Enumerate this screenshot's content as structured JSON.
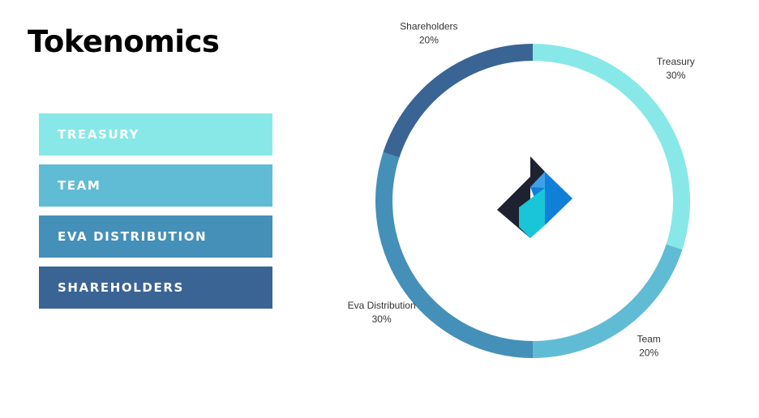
{
  "title": "Tokenomics",
  "legend": [
    {
      "label": "Treasury",
      "color": "#88E8E8"
    },
    {
      "label": "Team",
      "color": "#60BCD4"
    },
    {
      "label": "Eva Distribution",
      "color": "#4590B8"
    },
    {
      "label": "Shareholders",
      "color": "#3A6494"
    }
  ],
  "center_logo": {
    "icon": "eva-logo-icon",
    "colors": [
      "#1E2230",
      "#0F7FD8",
      "#18C6D8"
    ]
  },
  "chart_data": {
    "type": "pie",
    "variant": "donut",
    "title": "",
    "categories": [
      "Treasury",
      "Team",
      "Eva Distribution",
      "Shareholders"
    ],
    "values": [
      30,
      20,
      30,
      20
    ],
    "value_labels": [
      "30%",
      "20%",
      "30%",
      "20%"
    ],
    "colors": [
      "#88E8E8",
      "#60BCD4",
      "#4590B8",
      "#3A6494"
    ],
    "start_angle": "top, clockwise",
    "legend": "left"
  }
}
